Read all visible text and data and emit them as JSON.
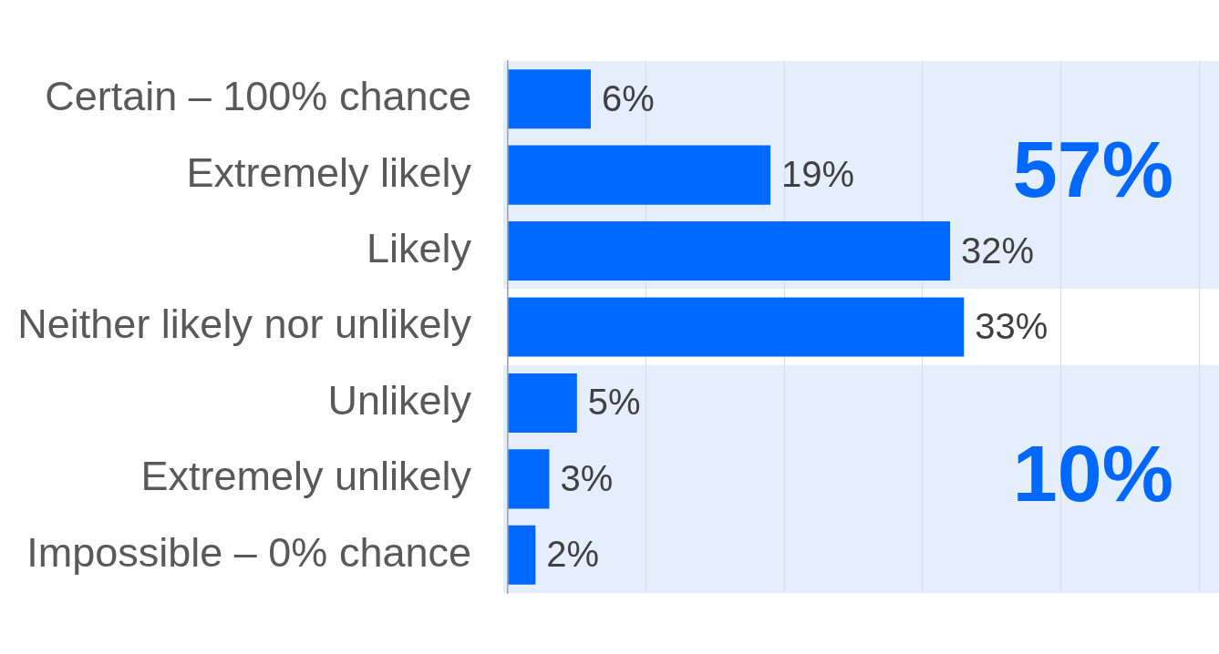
{
  "chart_data": {
    "type": "bar",
    "orientation": "horizontal",
    "categories": [
      "Certain – 100% chance",
      "Extremely likely",
      "Likely",
      "Neither likely nor unlikely",
      "Unlikely",
      "Extremely unlikely",
      "Impossible – 0% chance"
    ],
    "values": [
      6,
      19,
      32,
      33,
      5,
      3,
      2
    ],
    "color": "#0068ff",
    "value_labels": [
      "6%",
      "19%",
      "32%",
      "33%",
      "5%",
      "3%",
      "2%"
    ],
    "xlim": [
      0,
      50
    ],
    "xticks": [
      {
        "value": 0,
        "label": null
      },
      {
        "value": 10,
        "label": null
      },
      {
        "value": 20,
        "label": null
      },
      {
        "value": 30,
        "label": null
      },
      {
        "value": 40,
        "label": null
      },
      {
        "value": 50,
        "label": null
      }
    ],
    "grid": "x",
    "tick_labels": "y",
    "bands": [
      {
        "axis": "y",
        "from": "Certain – 100% chance",
        "to": "Likely",
        "label": "57%",
        "color": "#e5eefd"
      },
      {
        "axis": "y",
        "from": "Unlikely",
        "to": "Impossible – 0% chance",
        "label": "10%",
        "color": "#e5eefd"
      }
    ]
  }
}
